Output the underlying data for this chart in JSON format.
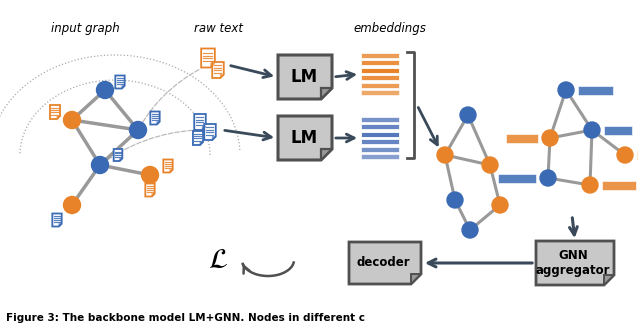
{
  "orange": "#E8832A",
  "blue": "#3A6AB4",
  "blue_emb": "#4A6FA5",
  "gray_edge": "#999999",
  "bg_color": "#FFFFFF",
  "arrow_color": "#3A4A5A",
  "label_input_graph": "input graph",
  "label_raw_text": "raw text",
  "label_embeddings": "embeddings",
  "label_decoder": "decoder",
  "label_gnn": "GNN\naggregator",
  "label_loss": "$\\mathcal{L}$",
  "caption": "Figure 3: The backbone model LM+GNN. Nodes in different c"
}
